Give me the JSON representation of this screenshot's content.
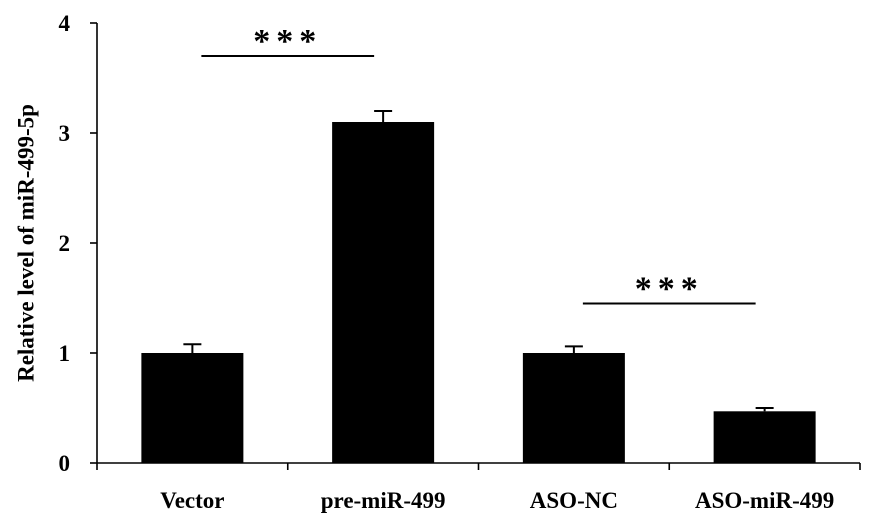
{
  "chart_data": {
    "type": "bar",
    "title": "",
    "xlabel": "",
    "ylabel": "Relative level of miR-499-5p",
    "categories": [
      "Vector",
      "pre-miR-499",
      "ASO-NC",
      "ASO-miR-499"
    ],
    "values": [
      1.0,
      3.1,
      1.0,
      0.47
    ],
    "errors": [
      0.08,
      0.1,
      0.06,
      0.03
    ],
    "ylim": [
      0,
      4
    ],
    "yticks": [
      0,
      1,
      2,
      3,
      4
    ],
    "bar_color": "#000000",
    "grid": false,
    "legend": "none",
    "annotations": [
      {
        "text": "***",
        "from_category": 0,
        "to_category": 1,
        "line_y": 3.7
      },
      {
        "text": "***",
        "from_category": 2,
        "to_category": 3,
        "line_y": 1.45
      }
    ]
  }
}
